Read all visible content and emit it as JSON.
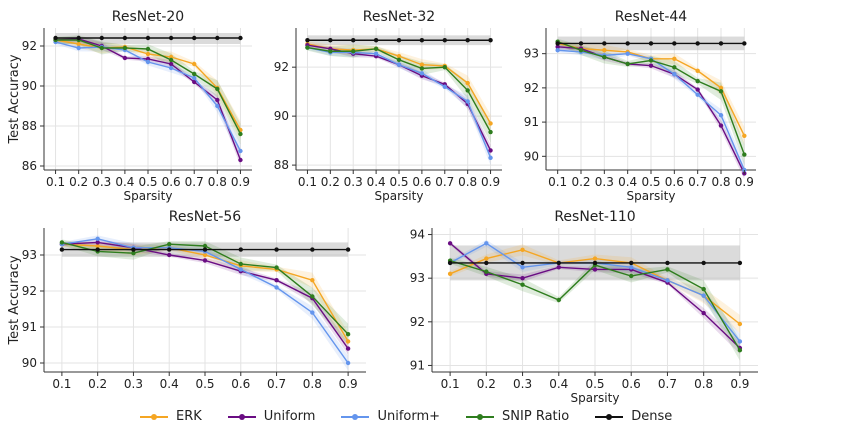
{
  "legend": {
    "items": [
      {
        "name": "ERK",
        "color": "#f5a623"
      },
      {
        "name": "Uniform",
        "color": "#6a0d83"
      },
      {
        "name": "Uniform+",
        "color": "#6495ed"
      },
      {
        "name": "SNIP Ratio",
        "color": "#2e7d1e"
      },
      {
        "name": "Dense",
        "color": "#111111"
      }
    ]
  },
  "chart_data": [
    {
      "type": "line",
      "title": "ResNet-20",
      "xlabel": "Sparsity",
      "ylabel": "Test Accuracy",
      "x": [
        0.1,
        0.2,
        0.3,
        0.4,
        0.5,
        0.6,
        0.7,
        0.8,
        0.9
      ],
      "xticks": [
        "0.1",
        "0.2",
        "0.3",
        "0.4",
        "0.5",
        "0.6",
        "0.7",
        "0.8",
        "0.9"
      ],
      "ylim": [
        85.8,
        92.9
      ],
      "yticks": [
        86,
        88,
        90,
        92
      ],
      "dense": {
        "value": 92.4,
        "band": [
          92.1,
          92.65
        ]
      },
      "series": [
        {
          "name": "ERK",
          "values": [
            92.3,
            92.1,
            91.9,
            91.95,
            91.6,
            91.45,
            91.1,
            89.9,
            87.8
          ]
        },
        {
          "name": "Uniform",
          "values": [
            92.3,
            92.35,
            92.0,
            91.4,
            91.35,
            91.1,
            90.2,
            89.3,
            86.3
          ]
        },
        {
          "name": "Uniform+",
          "values": [
            92.2,
            91.9,
            91.95,
            91.8,
            91.2,
            90.9,
            90.4,
            89.0,
            86.75
          ]
        },
        {
          "name": "SNIP Ratio",
          "values": [
            92.3,
            92.3,
            91.9,
            91.9,
            91.85,
            91.3,
            90.6,
            89.85,
            87.6
          ]
        }
      ]
    },
    {
      "type": "line",
      "title": "ResNet-32",
      "xlabel": "Sparsity",
      "ylabel": "",
      "x": [
        0.1,
        0.2,
        0.3,
        0.4,
        0.5,
        0.6,
        0.7,
        0.8,
        0.9
      ],
      "xticks": [
        "0.1",
        "0.2",
        "0.3",
        "0.4",
        "0.5",
        "0.6",
        "0.7",
        "0.8",
        "0.9"
      ],
      "ylim": [
        87.8,
        93.6
      ],
      "yticks": [
        88,
        90,
        92
      ],
      "dense": {
        "value": 93.1,
        "band": [
          92.9,
          93.3
        ]
      },
      "series": [
        {
          "name": "ERK",
          "values": [
            92.95,
            92.75,
            92.7,
            92.75,
            92.45,
            92.1,
            92.05,
            91.35,
            89.7
          ]
        },
        {
          "name": "Uniform",
          "values": [
            92.9,
            92.75,
            92.55,
            92.45,
            92.1,
            91.65,
            91.3,
            90.5,
            88.6
          ]
        },
        {
          "name": "Uniform+",
          "values": [
            92.8,
            92.6,
            92.6,
            92.55,
            92.1,
            91.75,
            91.2,
            90.6,
            88.3
          ]
        },
        {
          "name": "SNIP Ratio",
          "values": [
            92.8,
            92.65,
            92.65,
            92.75,
            92.3,
            91.95,
            92.0,
            91.05,
            89.35
          ]
        }
      ]
    },
    {
      "type": "line",
      "title": "ResNet-44",
      "xlabel": "Sparsity",
      "ylabel": "",
      "x": [
        0.1,
        0.2,
        0.3,
        0.4,
        0.5,
        0.6,
        0.7,
        0.8,
        0.9
      ],
      "xticks": [
        "0.1",
        "0.2",
        "0.3",
        "0.4",
        "0.5",
        "0.6",
        "0.7",
        "0.8",
        "0.9"
      ],
      "ylim": [
        89.6,
        93.75
      ],
      "yticks": [
        90,
        91,
        92,
        93
      ],
      "dense": {
        "value": 93.3,
        "band": [
          93.1,
          93.5
        ]
      },
      "series": [
        {
          "name": "ERK",
          "values": [
            93.3,
            93.15,
            93.1,
            93.05,
            92.85,
            92.85,
            92.5,
            92.0,
            90.6
          ]
        },
        {
          "name": "Uniform",
          "values": [
            93.2,
            93.15,
            92.9,
            92.7,
            92.65,
            92.4,
            91.95,
            90.9,
            89.5
          ]
        },
        {
          "name": "Uniform+",
          "values": [
            93.1,
            93.05,
            92.95,
            93.0,
            92.85,
            92.4,
            91.8,
            91.2,
            89.6
          ]
        },
        {
          "name": "SNIP Ratio",
          "values": [
            93.35,
            93.1,
            92.9,
            92.7,
            92.8,
            92.6,
            92.2,
            91.9,
            90.05
          ]
        }
      ]
    },
    {
      "type": "line",
      "title": "ResNet-56",
      "xlabel": "",
      "ylabel": "Test Accuracy",
      "x": [
        0.1,
        0.2,
        0.3,
        0.4,
        0.5,
        0.6,
        0.7,
        0.8,
        0.9
      ],
      "xticks": [
        "0.1",
        "0.2",
        "0.3",
        "0.4",
        "0.5",
        "0.6",
        "0.7",
        "0.8",
        "0.9"
      ],
      "ylim": [
        89.75,
        93.75
      ],
      "yticks": [
        90,
        91,
        92,
        93
      ],
      "dense": {
        "value": 93.15,
        "band": [
          92.95,
          93.35
        ]
      },
      "series": [
        {
          "name": "ERK",
          "values": [
            93.3,
            93.25,
            93.15,
            93.2,
            93.0,
            92.7,
            92.6,
            92.3,
            90.6
          ]
        },
        {
          "name": "Uniform",
          "values": [
            93.3,
            93.35,
            93.2,
            93.0,
            92.85,
            92.55,
            92.3,
            91.8,
            90.4
          ]
        },
        {
          "name": "Uniform+",
          "values": [
            93.3,
            93.45,
            93.2,
            93.2,
            93.1,
            92.6,
            92.1,
            91.4,
            90.0
          ]
        },
        {
          "name": "SNIP Ratio",
          "values": [
            93.35,
            93.1,
            93.05,
            93.3,
            93.25,
            92.75,
            92.65,
            91.85,
            90.8
          ]
        }
      ]
    },
    {
      "type": "line",
      "title": "ResNet-110",
      "xlabel": "Sparsity",
      "ylabel": "",
      "x": [
        0.1,
        0.2,
        0.3,
        0.4,
        0.5,
        0.6,
        0.7,
        0.8,
        0.9
      ],
      "xticks": [
        "0.1",
        "0.2",
        "0.3",
        "0.4",
        "0.5",
        "0.6",
        "0.7",
        "0.8",
        "0.9"
      ],
      "ylim": [
        90.85,
        94.15
      ],
      "yticks": [
        91,
        92,
        93,
        94
      ],
      "dense": {
        "value": 93.35,
        "band": [
          92.95,
          93.75
        ]
      },
      "series": [
        {
          "name": "ERK",
          "values": [
            93.1,
            93.45,
            93.65,
            93.35,
            93.45,
            93.35,
            92.95,
            92.6,
            91.95
          ]
        },
        {
          "name": "Uniform",
          "values": [
            93.8,
            93.1,
            93.0,
            93.25,
            93.2,
            93.2,
            92.9,
            92.2,
            91.4
          ]
        },
        {
          "name": "Uniform+",
          "values": [
            93.35,
            93.8,
            93.25,
            93.35,
            93.35,
            93.25,
            92.95,
            92.6,
            91.55
          ]
        },
        {
          "name": "SNIP Ratio",
          "values": [
            93.4,
            93.15,
            92.85,
            92.5,
            93.3,
            93.05,
            93.2,
            92.75,
            91.35
          ]
        }
      ]
    }
  ]
}
